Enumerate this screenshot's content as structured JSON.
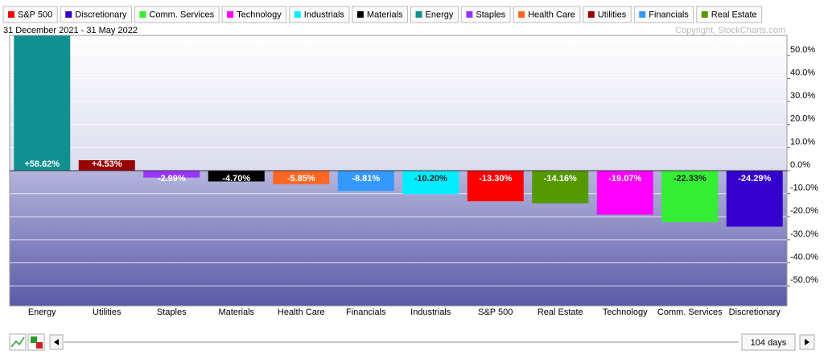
{
  "chart_data": {
    "type": "bar",
    "subtitle": "31 December 2021 - 31 May 2022",
    "copyright": "Copyright, StockCharts.com",
    "period": "104 days",
    "legend": [
      {
        "name": "S&P 500",
        "color": "#ff0000"
      },
      {
        "name": "Discretionary",
        "color": "#3300cc"
      },
      {
        "name": "Comm. Services",
        "color": "#33ee33"
      },
      {
        "name": "Technology",
        "color": "#ff00ff"
      },
      {
        "name": "Industrials",
        "color": "#00eeff"
      },
      {
        "name": "Materials",
        "color": "#000000"
      },
      {
        "name": "Energy",
        "color": "#119090"
      },
      {
        "name": "Staples",
        "color": "#9933ff"
      },
      {
        "name": "Health Care",
        "color": "#ff6622"
      },
      {
        "name": "Utilities",
        "color": "#990000"
      },
      {
        "name": "Financials",
        "color": "#3399ff"
      },
      {
        "name": "Real Estate",
        "color": "#559900"
      }
    ],
    "categories": [
      "Energy",
      "Utilities",
      "Staples",
      "Materials",
      "Health Care",
      "Financials",
      "Industrials",
      "S&P 500",
      "Real Estate",
      "Technology",
      "Comm. Services",
      "Discretionary"
    ],
    "values": [
      58.62,
      4.53,
      -2.99,
      -4.7,
      -5.85,
      -8.81,
      -10.2,
      -13.3,
      -14.16,
      -19.07,
      -22.33,
      -24.29
    ],
    "value_labels": [
      "+58.62%",
      "+4.53%",
      "-2.99%",
      "-4.70%",
      "-5.85%",
      "-8.81%",
      "-10.20%",
      "-13.30%",
      "-14.16%",
      "-19.07%",
      "-22.33%",
      "-24.29%"
    ],
    "colors": [
      "#119090",
      "#990000",
      "#9933ff",
      "#000000",
      "#ff6622",
      "#3399ff",
      "#00eeff",
      "#ff0000",
      "#559900",
      "#ff00ff",
      "#33ee33",
      "#3300cc"
    ],
    "ylim": [
      -58.7,
      58.7
    ],
    "yticks": [
      {
        "value": 50,
        "label": "50.0%"
      },
      {
        "value": 40,
        "label": "40.0%"
      },
      {
        "value": 30,
        "label": "30.0%"
      },
      {
        "value": 20,
        "label": "20.0%"
      },
      {
        "value": 10,
        "label": "10.0%"
      },
      {
        "value": 0,
        "label": "0.0%"
      },
      {
        "value": -10,
        "label": "-10.0%"
      },
      {
        "value": -20,
        "label": "-20.0%"
      },
      {
        "value": -30,
        "label": "-30.0%"
      },
      {
        "value": -40,
        "label": "-40.0%"
      },
      {
        "value": -50,
        "label": "-50.0%"
      }
    ],
    "grid": true
  }
}
